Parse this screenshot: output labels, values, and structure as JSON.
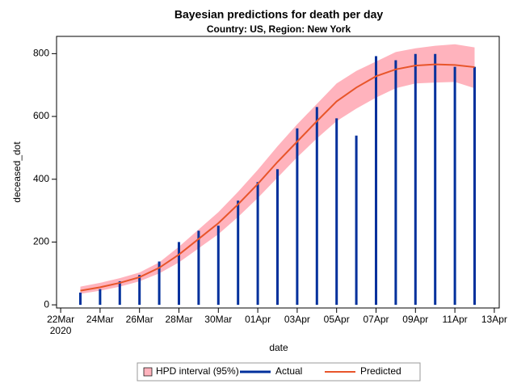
{
  "chart_data": {
    "type": "band-needle-line",
    "title": "Bayesian predictions for death per day",
    "subtitle": "Country: US, Region: New York",
    "xlabel": "date",
    "ylabel": "deceased_dot",
    "x": [
      "2020-03-23",
      "2020-03-24",
      "2020-03-25",
      "2020-03-26",
      "2020-03-27",
      "2020-03-28",
      "2020-03-29",
      "2020-03-30",
      "2020-03-31",
      "2020-04-01",
      "2020-04-02",
      "2020-04-03",
      "2020-04-04",
      "2020-04-05",
      "2020-04-06",
      "2020-04-07",
      "2020-04-08",
      "2020-04-09",
      "2020-04-10",
      "2020-04-11",
      "2020-04-12"
    ],
    "xlim": [
      "2020-03-21T19:00",
      "2020-04-13T06:00"
    ],
    "xticks": [
      {
        "value": "2020-03-22",
        "label": "22Mar"
      },
      {
        "value": "2020-03-24",
        "label": "24Mar"
      },
      {
        "value": "2020-03-26",
        "label": "26Mar"
      },
      {
        "value": "2020-03-28",
        "label": "28Mar"
      },
      {
        "value": "2020-03-30",
        "label": "30Mar"
      },
      {
        "value": "2020-04-01",
        "label": "01Apr"
      },
      {
        "value": "2020-04-03",
        "label": "03Apr"
      },
      {
        "value": "2020-04-05",
        "label": "05Apr"
      },
      {
        "value": "2020-04-07",
        "label": "07Apr"
      },
      {
        "value": "2020-04-09",
        "label": "09Apr"
      },
      {
        "value": "2020-04-11",
        "label": "11Apr"
      },
      {
        "value": "2020-04-13",
        "label": "13Apr"
      }
    ],
    "xtick_year": "2020",
    "ylim": [
      -10,
      855
    ],
    "yticks": [
      0,
      200,
      400,
      600,
      800
    ],
    "series": [
      {
        "name": "HPD interval (95%)",
        "kind": "band",
        "color": "#ffb3bd",
        "lower": [
          35,
          45,
          58,
          75,
          100,
          135,
          180,
          225,
          280,
          340,
          405,
          470,
          530,
          585,
          625,
          660,
          690,
          705,
          708,
          710,
          690
        ],
        "upper": [
          58,
          70,
          85,
          103,
          135,
          185,
          240,
          295,
          360,
          430,
          505,
          575,
          640,
          705,
          745,
          775,
          805,
          817,
          825,
          830,
          820
        ]
      },
      {
        "name": "Actual",
        "kind": "needle",
        "color": "#00309c",
        "values": [
          39,
          50,
          75,
          95,
          138,
          200,
          236,
          252,
          332,
          391,
          432,
          562,
          630,
          594,
          539,
          792,
          779,
          799,
          799,
          758,
          758
        ]
      },
      {
        "name": "Predicted",
        "kind": "line",
        "color": "#e8552a",
        "values": [
          45,
          56,
          70,
          88,
          118,
          160,
          210,
          260,
          320,
          385,
          455,
          520,
          585,
          648,
          692,
          728,
          750,
          762,
          766,
          764,
          757
        ]
      }
    ]
  }
}
